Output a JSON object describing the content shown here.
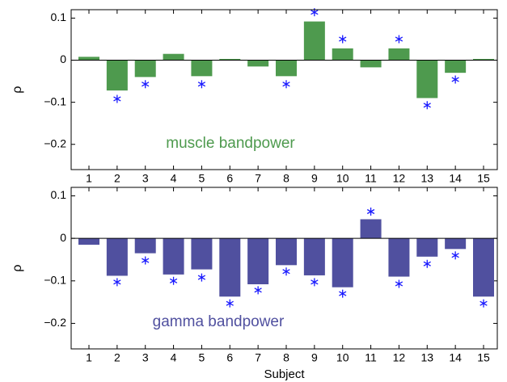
{
  "chart_data": [
    {
      "type": "bar",
      "annotation": "muscle bandpower",
      "ylabel": "ρ",
      "categories": [
        "1",
        "2",
        "3",
        "4",
        "5",
        "6",
        "7",
        "8",
        "9",
        "10",
        "11",
        "12",
        "13",
        "14",
        "15"
      ],
      "values": [
        0.008,
        -0.072,
        -0.04,
        0.015,
        -0.038,
        0.003,
        -0.015,
        -0.038,
        0.092,
        0.028,
        -0.017,
        0.028,
        -0.09,
        -0.03,
        0.003
      ],
      "color": "#4e9a4e",
      "significance_markers": {
        "color": "#1a1aff",
        "values": [
          null,
          -0.092,
          -0.057,
          null,
          -0.057,
          null,
          null,
          -0.057,
          0.114,
          0.05,
          null,
          0.05,
          -0.107,
          -0.046,
          null
        ]
      },
      "ylim": [
        -0.26,
        0.12
      ],
      "yticks": [
        {
          "value": -0.2,
          "label": "−0.2"
        },
        {
          "value": -0.1,
          "label": "−0.1"
        },
        0,
        0.1
      ]
    },
    {
      "type": "bar",
      "annotation": "gamma bandpower",
      "ylabel": "ρ",
      "xlabel": "Subject",
      "categories": [
        "1",
        "2",
        "3",
        "4",
        "5",
        "6",
        "7",
        "8",
        "9",
        "10",
        "11",
        "12",
        "13",
        "14",
        "15"
      ],
      "values": [
        -0.015,
        -0.088,
        -0.035,
        -0.085,
        -0.073,
        -0.137,
        -0.108,
        -0.063,
        -0.087,
        -0.115,
        0.045,
        -0.09,
        -0.043,
        -0.025,
        -0.137
      ],
      "color": "#50509f",
      "significance_markers": {
        "color": "#1a1aff",
        "values": [
          null,
          -0.103,
          -0.052,
          -0.1,
          -0.092,
          -0.153,
          -0.122,
          -0.078,
          -0.103,
          -0.13,
          0.063,
          -0.107,
          -0.06,
          -0.04,
          -0.153
        ]
      },
      "ylim": [
        -0.26,
        0.12
      ],
      "yticks": [
        {
          "value": -0.2,
          "label": "−0.2"
        },
        {
          "value": -0.1,
          "label": "−0.1"
        },
        0,
        0.1
      ]
    }
  ]
}
